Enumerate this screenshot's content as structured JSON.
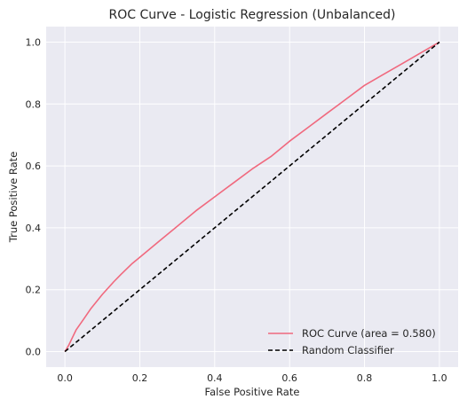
{
  "chart_data": {
    "type": "line",
    "title": "ROC Curve - Logistic Regression (Unbalanced)",
    "xlabel": "False Positive Rate",
    "ylabel": "True Positive Rate",
    "xlim": [
      -0.05,
      1.05
    ],
    "ylim": [
      -0.05,
      1.05
    ],
    "xticks": [
      0.0,
      0.2,
      0.4,
      0.6,
      0.8,
      1.0
    ],
    "xtick_labels": [
      "0.0",
      "0.2",
      "0.4",
      "0.6",
      "0.8",
      "1.0"
    ],
    "yticks": [
      0.0,
      0.2,
      0.4,
      0.6,
      0.8,
      1.0
    ],
    "ytick_labels": [
      "0.0",
      "0.2",
      "0.4",
      "0.6",
      "0.8",
      "1.0"
    ],
    "grid": true,
    "legend_position": "lower-right",
    "series": [
      {
        "name": "ROC Curve (area = 0.580)",
        "color": "#f0697e",
        "style": "solid",
        "x": [
          0.0,
          0.01,
          0.02,
          0.03,
          0.05,
          0.07,
          0.1,
          0.13,
          0.15,
          0.18,
          0.2,
          0.25,
          0.3,
          0.35,
          0.4,
          0.45,
          0.5,
          0.55,
          0.6,
          0.65,
          0.7,
          0.75,
          0.8,
          0.85,
          0.9,
          0.95,
          1.0
        ],
        "y": [
          0.0,
          0.02,
          0.045,
          0.07,
          0.105,
          0.14,
          0.185,
          0.225,
          0.25,
          0.285,
          0.305,
          0.355,
          0.405,
          0.455,
          0.5,
          0.545,
          0.59,
          0.63,
          0.68,
          0.725,
          0.77,
          0.815,
          0.86,
          0.895,
          0.93,
          0.965,
          1.0
        ]
      },
      {
        "name": "Random Classifier",
        "color": "#000000",
        "style": "dashed",
        "x": [
          0.0,
          1.0
        ],
        "y": [
          0.0,
          1.0
        ]
      }
    ]
  }
}
